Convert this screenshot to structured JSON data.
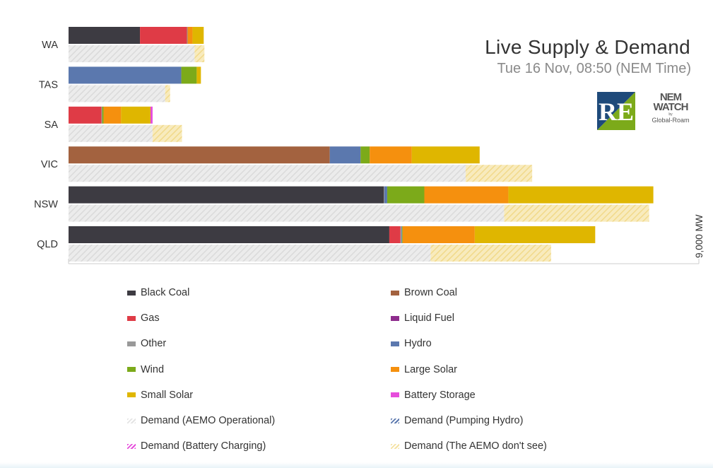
{
  "header": {
    "title": "Live Supply & Demand",
    "subtitle": "Tue 16 Nov, 08:50 (NEM Time)"
  },
  "logos": {
    "left": "RE",
    "right_line1": "NEM",
    "right_line2": "WATCH",
    "right_line3": "by",
    "right_line4": "Global-Roam"
  },
  "colors": {
    "black_coal": "#3d3b42",
    "brown_coal": "#a3623f",
    "gas": "#df3b46",
    "liquid_fuel": "#8e2c8d",
    "other": "#999999",
    "hydro": "#5b78ae",
    "wind": "#7caa1a",
    "large_solar": "#f5900e",
    "small_solar": "#dfb600",
    "battery_storage": "#e64ddc",
    "demand_operational": "#e4e4e4",
    "demand_pumping": "#5b78ae",
    "demand_battery": "#e64ddc",
    "demand_unseen": "#f5e2a2"
  },
  "chart_data": {
    "type": "bar",
    "orientation": "horizontal",
    "stacked": true,
    "categories": [
      "WA",
      "TAS",
      "SA",
      "VIC",
      "NSW",
      "QLD"
    ],
    "xlim": [
      0,
      9000
    ],
    "axis_end_label": "9,000 MW",
    "supply_series": [
      {
        "key": "black_coal",
        "name": "Black Coal",
        "values": [
          1020,
          0,
          0,
          0,
          4500,
          4580
        ]
      },
      {
        "key": "brown_coal",
        "name": "Brown Coal",
        "values": [
          0,
          0,
          0,
          3730,
          0,
          0
        ]
      },
      {
        "key": "gas",
        "name": "Gas",
        "values": [
          670,
          0,
          470,
          0,
          0,
          160
        ]
      },
      {
        "key": "liquid_fuel",
        "name": "Liquid Fuel",
        "values": [
          0,
          0,
          0,
          0,
          0,
          0
        ]
      },
      {
        "key": "other",
        "name": "Other",
        "values": [
          10,
          0,
          10,
          0,
          10,
          10
        ]
      },
      {
        "key": "hydro",
        "name": "Hydro",
        "values": [
          0,
          1610,
          0,
          440,
          40,
          10
        ]
      },
      {
        "key": "wind",
        "name": "Wind",
        "values": [
          0,
          220,
          20,
          130,
          530,
          10
        ]
      },
      {
        "key": "large_solar",
        "name": "Large Solar",
        "values": [
          70,
          0,
          250,
          600,
          1200,
          1030
        ]
      },
      {
        "key": "small_solar",
        "name": "Small Solar",
        "values": [
          160,
          60,
          420,
          970,
          2070,
          1720
        ]
      },
      {
        "key": "battery_storage",
        "name": "Battery Storage",
        "values": [
          0,
          0,
          30,
          0,
          0,
          0
        ]
      }
    ],
    "demand_series": [
      {
        "key": "demand_operational",
        "name": "Demand (AEMO Operational)",
        "values": [
          1800,
          1380,
          1200,
          5670,
          6220,
          5170
        ]
      },
      {
        "key": "demand_pumping",
        "name": "Demand (Pumping Hydro)",
        "values": [
          0,
          0,
          0,
          0,
          0,
          0
        ]
      },
      {
        "key": "demand_battery",
        "name": "Demand (Battery Charging)",
        "values": [
          0,
          0,
          0,
          0,
          0,
          0
        ]
      },
      {
        "key": "demand_unseen",
        "name": "Demand (The AEMO don't see)",
        "values": [
          140,
          70,
          420,
          950,
          2070,
          1720
        ]
      }
    ],
    "legend": [
      {
        "key": "black_coal",
        "label": "Black Coal"
      },
      {
        "key": "brown_coal",
        "label": "Brown Coal"
      },
      {
        "key": "gas",
        "label": "Gas"
      },
      {
        "key": "liquid_fuel",
        "label": "Liquid Fuel"
      },
      {
        "key": "other",
        "label": "Other"
      },
      {
        "key": "hydro",
        "label": "Hydro"
      },
      {
        "key": "wind",
        "label": "Wind"
      },
      {
        "key": "large_solar",
        "label": "Large Solar"
      },
      {
        "key": "small_solar",
        "label": "Small Solar"
      },
      {
        "key": "battery_storage",
        "label": "Battery Storage"
      },
      {
        "key": "demand_operational",
        "label": "Demand (AEMO Operational)"
      },
      {
        "key": "demand_pumping",
        "label": "Demand (Pumping Hydro)"
      },
      {
        "key": "demand_battery",
        "label": "Demand (Battery Charging)"
      },
      {
        "key": "demand_unseen",
        "label": "Demand (The AEMO don't see)"
      }
    ]
  }
}
